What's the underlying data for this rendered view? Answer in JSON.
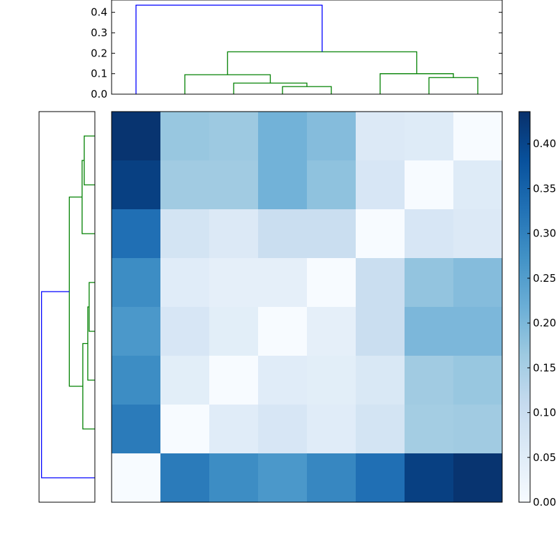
{
  "chart_data": [
    {
      "type": "dendrogram",
      "orientation": "top",
      "ylim": [
        0,
        0.45
      ],
      "yticks": [
        "0.0",
        "0.1",
        "0.2",
        "0.3",
        "0.4"
      ],
      "leaf_positions": [
        5,
        15,
        25,
        35,
        45,
        55,
        65,
        75
      ],
      "links": [
        {
          "x": [
            35,
            35,
            45,
            45
          ],
          "y": [
            0,
            0.037,
            0.037,
            0
          ],
          "color": "#008000"
        },
        {
          "x": [
            25,
            25,
            40,
            40
          ],
          "y": [
            0,
            0.054,
            0.054,
            0.037
          ],
          "color": "#008000"
        },
        {
          "x": [
            15,
            15,
            32.5,
            32.5
          ],
          "y": [
            0,
            0.095,
            0.095,
            0.054
          ],
          "color": "#008000"
        },
        {
          "x": [
            65,
            65,
            75,
            75
          ],
          "y": [
            0,
            0.081,
            0.081,
            0
          ],
          "color": "#008000"
        },
        {
          "x": [
            55,
            55,
            70,
            70
          ],
          "y": [
            0,
            0.1,
            0.1,
            0.081
          ],
          "color": "#008000"
        },
        {
          "x": [
            23.75,
            23.75,
            62.5,
            62.5
          ],
          "y": [
            0.095,
            0.207,
            0.207,
            0.1
          ],
          "color": "#008000"
        },
        {
          "x": [
            5,
            5,
            43.125,
            43.125
          ],
          "y": [
            0,
            0.435,
            0.435,
            0.207
          ],
          "color": "#0000ff"
        }
      ]
    },
    {
      "type": "dendrogram",
      "orientation": "left",
      "xlim": [
        0.45,
        0
      ],
      "leaf_positions": [
        5,
        15,
        25,
        35,
        45,
        55,
        65,
        75
      ],
      "links": [
        {
          "y": [
            75,
            75,
            65,
            65
          ],
          "x": [
            0,
            0.086,
            0.086,
            0
          ],
          "color": "#008000"
        },
        {
          "y": [
            70,
            70,
            55,
            55
          ],
          "x": [
            0.086,
            0.103,
            0.103,
            0
          ],
          "color": "#008000"
        },
        {
          "y": [
            45,
            45,
            35,
            35
          ],
          "x": [
            0,
            0.046,
            0.046,
            0
          ],
          "color": "#008000"
        },
        {
          "y": [
            40,
            40,
            25,
            25
          ],
          "x": [
            0.046,
            0.057,
            0.057,
            0
          ],
          "color": "#008000"
        },
        {
          "y": [
            32.5,
            32.5,
            15,
            15
          ],
          "x": [
            0.057,
            0.097,
            0.097,
            0
          ],
          "color": "#008000"
        },
        {
          "y": [
            62.5,
            62.5,
            23.75,
            23.75
          ],
          "x": [
            0.103,
            0.206,
            0.206,
            0.097
          ],
          "color": "#008000"
        },
        {
          "y": [
            43.125,
            43.125,
            5,
            5
          ],
          "x": [
            0.206,
            0.43,
            0.43,
            0
          ],
          "color": "#0000ff"
        }
      ]
    },
    {
      "type": "heatmap",
      "colormap": "Blues",
      "vmin": 0,
      "vmax": 0.436,
      "values": [
        [
          0.43,
          0.17,
          0.165,
          0.21,
          0.19,
          0.06,
          0.055,
          0.0
        ],
        [
          0.41,
          0.16,
          0.16,
          0.21,
          0.18,
          0.07,
          0.0,
          0.055
        ],
        [
          0.33,
          0.08,
          0.06,
          0.1,
          0.1,
          0.0,
          0.07,
          0.06
        ],
        [
          0.28,
          0.05,
          0.04,
          0.04,
          0.0,
          0.1,
          0.175,
          0.19
        ],
        [
          0.26,
          0.07,
          0.045,
          0.0,
          0.04,
          0.1,
          0.2,
          0.2
        ],
        [
          0.28,
          0.045,
          0.0,
          0.05,
          0.045,
          0.065,
          0.16,
          0.17
        ],
        [
          0.31,
          0.0,
          0.05,
          0.07,
          0.05,
          0.08,
          0.155,
          0.16
        ],
        [
          0.0,
          0.31,
          0.28,
          0.26,
          0.29,
          0.33,
          0.41,
          0.43
        ]
      ]
    },
    {
      "type": "colorbar",
      "range": [
        0,
        0.436
      ],
      "ticks": [
        "0.00",
        "0.05",
        "0.10",
        "0.15",
        "0.20",
        "0.25",
        "0.30",
        "0.35",
        "0.40"
      ]
    }
  ]
}
